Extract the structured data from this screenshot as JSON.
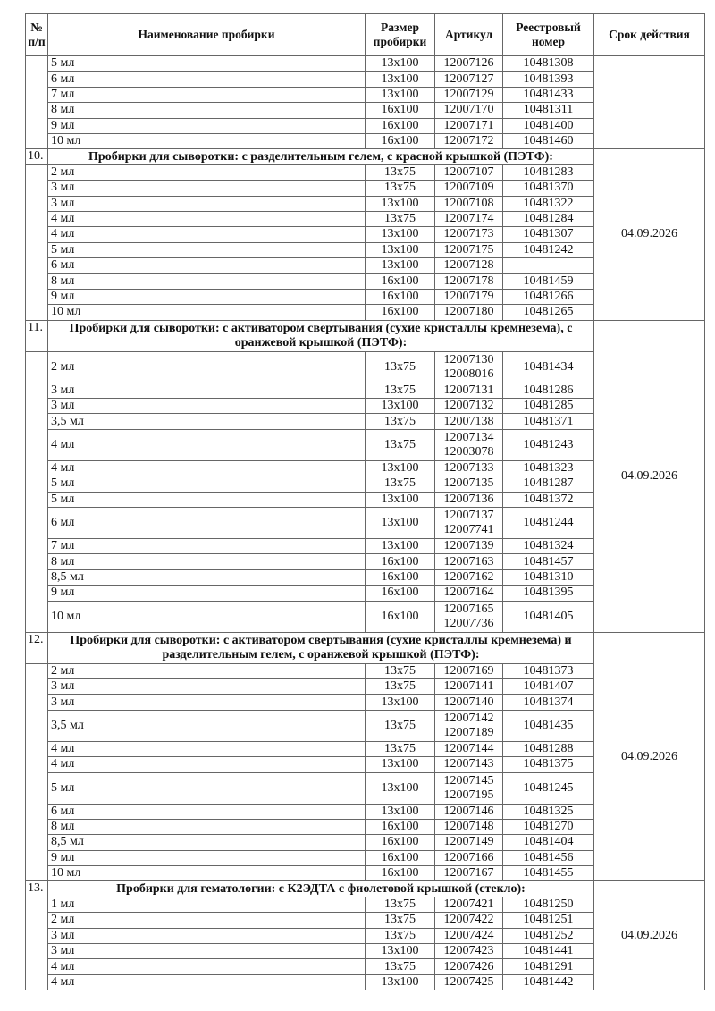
{
  "header": {
    "num": "№ п/п",
    "name": "Наименование пробирки",
    "size": "Размер пробирки",
    "article": "Артикул",
    "registry": "Реестровый номер",
    "expiry": "Срок действия"
  },
  "sections": [
    {
      "number": "",
      "title": "",
      "date": "",
      "rows": [
        {
          "name": "5 мл",
          "size": "13x100",
          "articles": [
            "12007126"
          ],
          "reg": "10481308"
        },
        {
          "name": "6 мл",
          "size": "13x100",
          "articles": [
            "12007127"
          ],
          "reg": "10481393"
        },
        {
          "name": "7 мл",
          "size": "13x100",
          "articles": [
            "12007129"
          ],
          "reg": "10481433"
        },
        {
          "name": "8 мл",
          "size": "16x100",
          "articles": [
            "12007170"
          ],
          "reg": "10481311"
        },
        {
          "name": "9 мл",
          "size": "16x100",
          "articles": [
            "12007171"
          ],
          "reg": "10481400"
        },
        {
          "name": "10 мл",
          "size": "16x100",
          "articles": [
            "12007172"
          ],
          "reg": "10481460"
        }
      ]
    },
    {
      "number": "10.",
      "title": "Пробирки для сыворотки: с разделительным гелем, с красной крышкой (ПЭТФ):",
      "date": "04.09.2026",
      "rows": [
        {
          "name": "2 мл",
          "size": "13x75",
          "articles": [
            "12007107"
          ],
          "reg": "10481283"
        },
        {
          "name": "3 мл",
          "size": "13x75",
          "articles": [
            "12007109"
          ],
          "reg": "10481370"
        },
        {
          "name": "3 мл",
          "size": "13x100",
          "articles": [
            "12007108"
          ],
          "reg": "10481322"
        },
        {
          "name": "4 мл",
          "size": "13x75",
          "articles": [
            "12007174"
          ],
          "reg": "10481284"
        },
        {
          "name": "4 мл",
          "size": "13x100",
          "articles": [
            "12007173"
          ],
          "reg": "10481307"
        },
        {
          "name": "5 мл",
          "size": "13x100",
          "articles": [
            "12007175"
          ],
          "reg": "10481242"
        },
        {
          "name": "6 мл",
          "size": "13x100",
          "articles": [
            "12007128"
          ],
          "reg": ""
        },
        {
          "name": "8 мл",
          "size": "16x100",
          "articles": [
            "12007178"
          ],
          "reg": "10481459"
        },
        {
          "name": "9 мл",
          "size": "16x100",
          "articles": [
            "12007179"
          ],
          "reg": "10481266"
        },
        {
          "name": "10 мл",
          "size": "16x100",
          "articles": [
            "12007180"
          ],
          "reg": "10481265"
        }
      ]
    },
    {
      "number": "11.",
      "title": "Пробирки для сыворотки: с активатором свертывания (сухие кристаллы кремнезема), с оранжевой крышкой (ПЭТФ):",
      "date": "04.09.2026",
      "rows": [
        {
          "name": "2 мл",
          "size": "13x75",
          "articles": [
            "12007130",
            "12008016"
          ],
          "reg": "10481434"
        },
        {
          "name": "3 мл",
          "size": "13x75",
          "articles": [
            "12007131"
          ],
          "reg": "10481286"
        },
        {
          "name": "3 мл",
          "size": "13x100",
          "articles": [
            "12007132"
          ],
          "reg": "10481285"
        },
        {
          "name": "3,5 мл",
          "size": "13x75",
          "articles": [
            "12007138"
          ],
          "reg": "10481371"
        },
        {
          "name": "4 мл",
          "size": "13x75",
          "articles": [
            "12007134",
            "12003078"
          ],
          "reg": "10481243"
        },
        {
          "name": "4 мл",
          "size": "13x100",
          "articles": [
            "12007133"
          ],
          "reg": "10481323"
        },
        {
          "name": "5 мл",
          "size": "13x75",
          "articles": [
            "12007135"
          ],
          "reg": "10481287"
        },
        {
          "name": "5 мл",
          "size": "13x100",
          "articles": [
            "12007136"
          ],
          "reg": "10481372"
        },
        {
          "name": "6 мл",
          "size": "13x100",
          "articles": [
            "12007137",
            "12007741"
          ],
          "reg": "10481244"
        },
        {
          "name": "7 мл",
          "size": "13x100",
          "articles": [
            "12007139"
          ],
          "reg": "10481324"
        },
        {
          "name": "8 мл",
          "size": "16x100",
          "articles": [
            "12007163"
          ],
          "reg": "10481457"
        },
        {
          "name": "8,5 мл",
          "size": "16x100",
          "articles": [
            "12007162"
          ],
          "reg": "10481310"
        },
        {
          "name": "9 мл",
          "size": "16x100",
          "articles": [
            "12007164"
          ],
          "reg": "10481395"
        },
        {
          "name": "10 мл",
          "size": "16x100",
          "articles": [
            "12007165",
            "12007736"
          ],
          "reg": "10481405"
        }
      ]
    },
    {
      "number": "12.",
      "title": "Пробирки для сыворотки: с активатором свертывания (сухие кристаллы кремнезема) и разделительным гелем, с оранжевой крышкой (ПЭТФ):",
      "date": "04.09.2026",
      "rows": [
        {
          "name": "2 мл",
          "size": "13x75",
          "articles": [
            "12007169"
          ],
          "reg": "10481373"
        },
        {
          "name": "3 мл",
          "size": "13x75",
          "articles": [
            "12007141"
          ],
          "reg": "10481407"
        },
        {
          "name": "3 мл",
          "size": "13x100",
          "articles": [
            "12007140"
          ],
          "reg": "10481374"
        },
        {
          "name": "3,5 мл",
          "size": "13x75",
          "articles": [
            "12007142",
            "12007189"
          ],
          "reg": "10481435"
        },
        {
          "name": "4 мл",
          "size": "13x75",
          "articles": [
            "12007144"
          ],
          "reg": "10481288"
        },
        {
          "name": "4 мл",
          "size": "13x100",
          "articles": [
            "12007143"
          ],
          "reg": "10481375"
        },
        {
          "name": "5 мл",
          "size": "13x100",
          "articles": [
            "12007145",
            "12007195"
          ],
          "reg": "10481245"
        },
        {
          "name": "6 мл",
          "size": "13x100",
          "articles": [
            "12007146"
          ],
          "reg": "10481325"
        },
        {
          "name": "8 мл",
          "size": "16x100",
          "articles": [
            "12007148"
          ],
          "reg": "10481270"
        },
        {
          "name": "8,5 мл",
          "size": "16x100",
          "articles": [
            "12007149"
          ],
          "reg": "10481404"
        },
        {
          "name": "9 мл",
          "size": "16x100",
          "articles": [
            "12007166"
          ],
          "reg": "10481456"
        },
        {
          "name": "10 мл",
          "size": "16x100",
          "articles": [
            "12007167"
          ],
          "reg": "10481455"
        }
      ]
    },
    {
      "number": "13.",
      "title": "Пробирки для гематологии: с К2ЭДТА с фиолетовой крышкой (стекло):",
      "date": "04.09.2026",
      "rows": [
        {
          "name": "1 мл",
          "size": "13x75",
          "articles": [
            "12007421"
          ],
          "reg": "10481250"
        },
        {
          "name": "2 мл",
          "size": "13x75",
          "articles": [
            "12007422"
          ],
          "reg": "10481251"
        },
        {
          "name": "3 мл",
          "size": "13x75",
          "articles": [
            "12007424"
          ],
          "reg": "10481252"
        },
        {
          "name": "3 мл",
          "size": "13x100",
          "articles": [
            "12007423"
          ],
          "reg": "10481441"
        },
        {
          "name": "4 мл",
          "size": "13x75",
          "articles": [
            "12007426"
          ],
          "reg": "10481291"
        },
        {
          "name": "4 мл",
          "size": "13x100",
          "articles": [
            "12007425"
          ],
          "reg": "10481442"
        }
      ]
    }
  ]
}
